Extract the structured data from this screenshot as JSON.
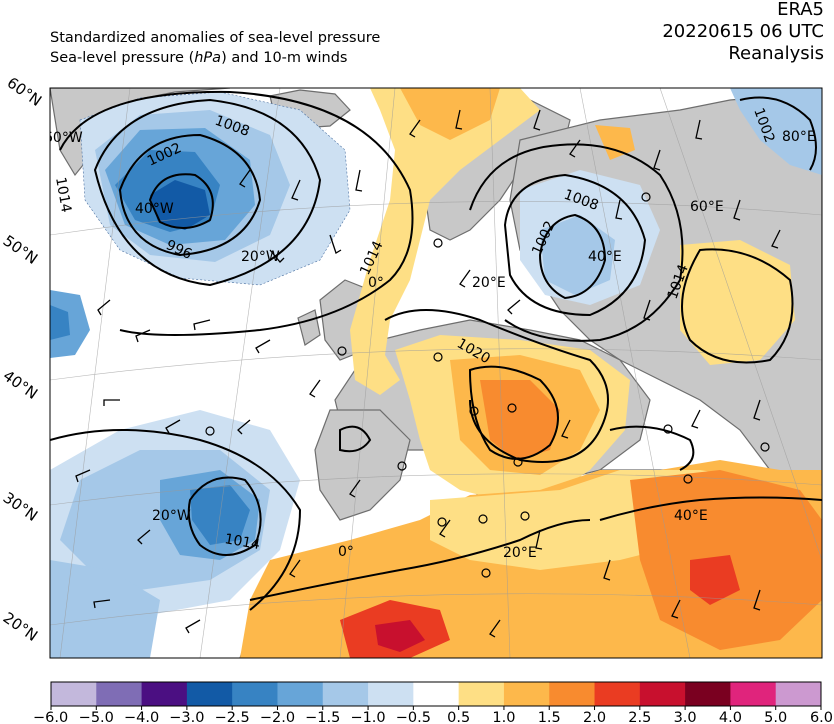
{
  "header": {
    "line1": "Standardized anomalies of sea-level pressure",
    "line2_pre": "Sea-level pressure (",
    "line2_unit": "hPa",
    "line2_post": ") and 10-m winds",
    "source": "ERA5",
    "datetime": "20220615 06 UTC",
    "product": "Reanalysis"
  },
  "latitude_labels": [
    "60°N",
    "50°N",
    "40°N",
    "30°N",
    "20°N"
  ],
  "meridian_labels": [
    "60°W",
    "40°W",
    "20°W",
    "0°",
    "20°E",
    "40°E",
    "60°E",
    "80°E"
  ],
  "lower_meridian_labels": [
    "20°W",
    "0°",
    "20°E",
    "40°E"
  ],
  "isobar_labels": [
    "1008",
    "1002",
    "996",
    "1014",
    "1014",
    "1008",
    "1002",
    "1014",
    "1020",
    "1002",
    "1014"
  ],
  "colorbar": {
    "ticks": [
      "−6.0",
      "−5.0",
      "−4.0",
      "−3.0",
      "−2.5",
      "−2.0",
      "−1.5",
      "−1.0",
      "−0.5",
      "0.5",
      "1.0",
      "1.5",
      "2.0",
      "2.5",
      "3.0",
      "4.0",
      "5.0",
      "6.0"
    ],
    "colors": [
      "#c3b8dc",
      "#7f6db5",
      "#4b0f82",
      "#125aa6",
      "#3783c3",
      "#67a5d8",
      "#a5c8e8",
      "#cde0f2",
      "#ffffff",
      "#fedf85",
      "#fdb84b",
      "#f88b2f",
      "#ea3c22",
      "#c8102e",
      "#7a0020",
      "#e0247c",
      "#cc99d0"
    ]
  }
}
